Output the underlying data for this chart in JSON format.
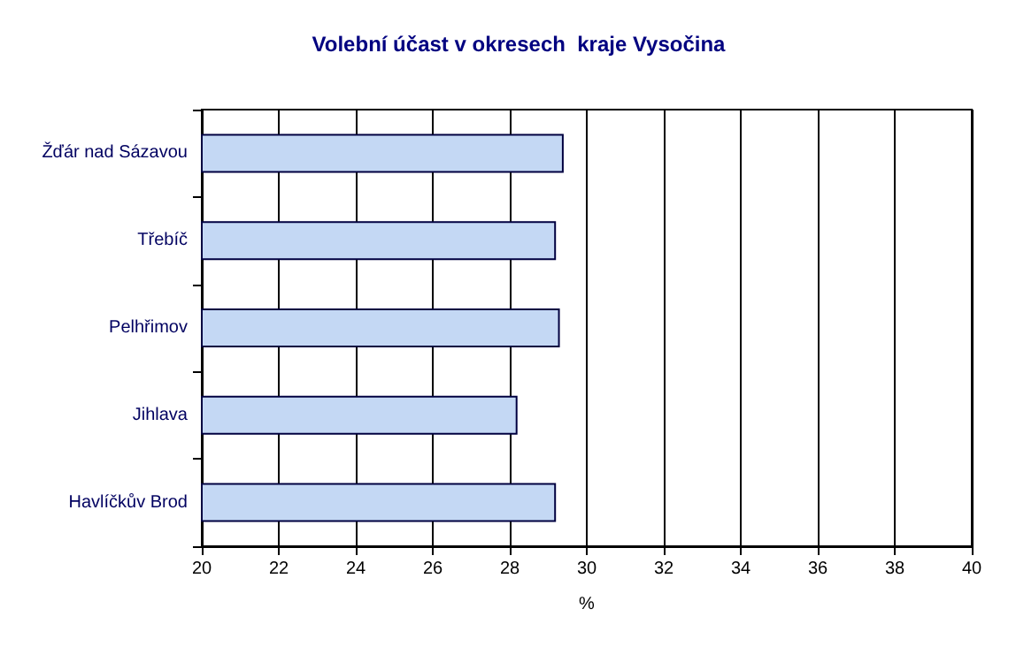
{
  "chart_data": {
    "type": "bar",
    "orientation": "horizontal",
    "title": "Volební účast v okresech  kraje Vysočina",
    "xlabel": "%",
    "categories": [
      "Žďár nad Sázavou",
      "Třebíč",
      "Pelhřimov",
      "Jihlava",
      "Havlíčkův Brod"
    ],
    "values": [
      29.4,
      29.2,
      29.3,
      28.2,
      29.2
    ],
    "color": "#c4d8f4",
    "xlim": [
      20,
      40
    ],
    "xticks": [
      20,
      22,
      24,
      26,
      28,
      30,
      32,
      34,
      36,
      38,
      40
    ],
    "grid": "x"
  }
}
